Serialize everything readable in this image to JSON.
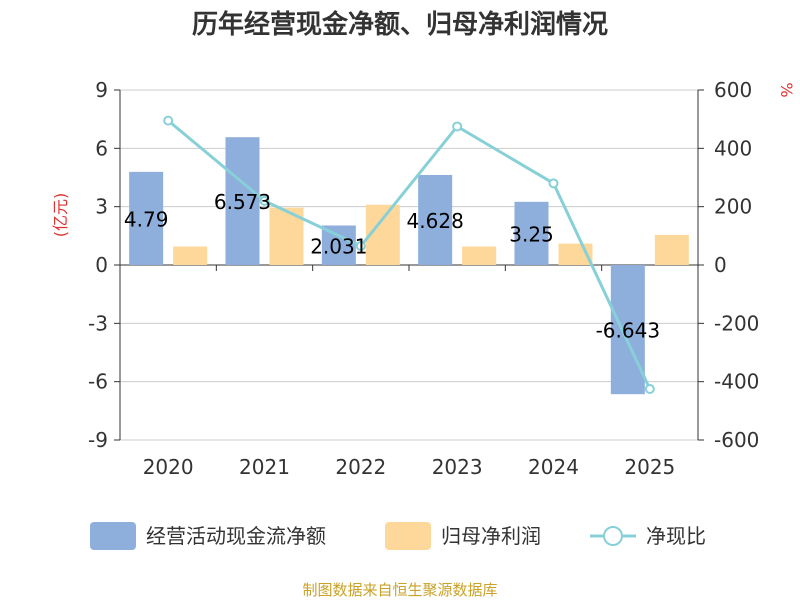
{
  "chart_data": {
    "type": "bar",
    "title": "历年经营现金净额、归母净利润情况",
    "categories": [
      "2020",
      "2021",
      "2022",
      "2023",
      "2024",
      "2025"
    ],
    "series": [
      {
        "name": "经营活动现金流净额",
        "type": "bar",
        "axis": "left",
        "color": "#8eaedc",
        "values": [
          4.79,
          6.573,
          2.031,
          4.628,
          3.25,
          -6.643
        ],
        "labels": [
          "4.79",
          "6.573",
          "2.031",
          "4.628",
          "3.25",
          "-6.643"
        ]
      },
      {
        "name": "归母净利润",
        "type": "bar",
        "axis": "left",
        "color": "#fdd89a",
        "values": [
          0.95,
          2.95,
          3.1,
          0.95,
          1.1,
          1.55
        ]
      },
      {
        "name": "净现比",
        "type": "line",
        "axis": "right",
        "color": "#88d0d8",
        "values": [
          495,
          220,
          65,
          475,
          280,
          -425
        ]
      }
    ],
    "left_axis": {
      "unit": "(亿元)",
      "range": [
        -9,
        9
      ],
      "ticks": [
        9,
        6,
        3,
        0,
        -3,
        -6,
        -9
      ]
    },
    "right_axis": {
      "unit": "%",
      "range": [
        -600,
        600
      ],
      "ticks": [
        600,
        400,
        200,
        0,
        -200,
        -400,
        -600
      ]
    },
    "grid": true,
    "legend_position": "bottom",
    "source": "制图数据来自恒生聚源数据库"
  }
}
